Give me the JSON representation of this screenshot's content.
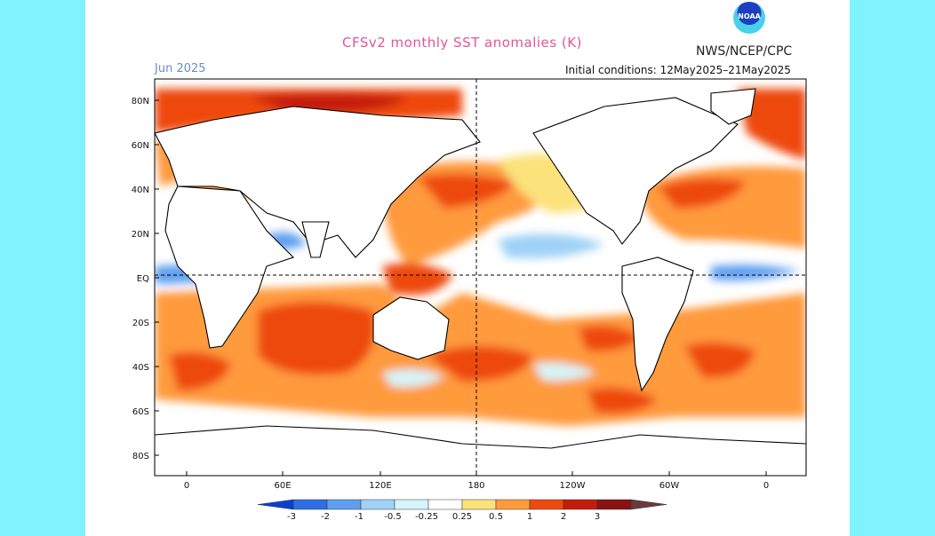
{
  "header": {
    "title": "CFSv2 monthly SST anomalies (K)",
    "organization": "NWS/NCEP/CPC",
    "period": "Jun 2025",
    "initial_conditions": "Initial conditions: 12May2025–21May2025",
    "logo_text": "NOAA"
  },
  "map": {
    "lat_labels": [
      "80N",
      "60N",
      "40N",
      "20N",
      "EQ",
      "20S",
      "40S",
      "60S",
      "80S"
    ],
    "lon_labels": [
      "0",
      "60E",
      "120E",
      "180",
      "120W",
      "60W",
      "0"
    ]
  },
  "colorbar": {
    "labels": [
      "-3",
      "-2",
      "-1",
      "-0.5",
      "-0.25",
      "0.25",
      "0.5",
      "1",
      "2",
      "3"
    ],
    "colors": [
      "#0a3fd0",
      "#2e6fe6",
      "#5f9ff0",
      "#9fd2f6",
      "#d6f4f9",
      "#ffffff",
      "#fbe27a",
      "#ff9a3c",
      "#ee4a10",
      "#c41c0b",
      "#8a1212",
      "#6a3a3a"
    ]
  }
}
